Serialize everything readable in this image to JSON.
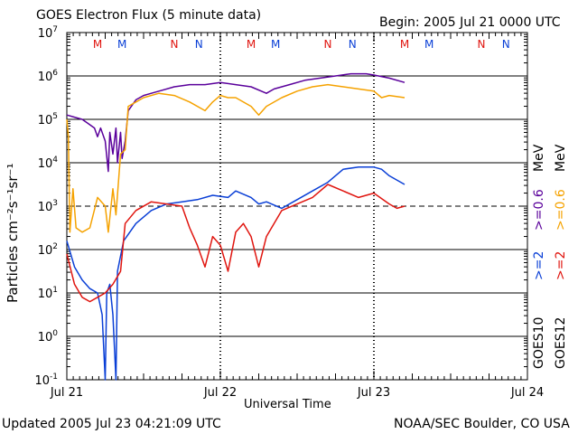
{
  "header": {
    "title": "GOES Electron Flux (5 minute data)",
    "begin": "Begin: 2005 Jul 21 0000 UTC"
  },
  "footer": {
    "updated": "Updated 2005 Jul 23 04:21:09 UTC",
    "credit": "NOAA/SEC Boulder, CO USA"
  },
  "colors": {
    "goes10_high": "#5a009b",
    "goes12_high": "#f5a200",
    "goes10_low": "#0a3fd6",
    "goes12_low": "#e0150f",
    "m_marker": "#e0150f",
    "n_marker": "#0a3fd6"
  },
  "chart_data": {
    "type": "line",
    "title": "GOES Electron Flux (5 minute data)",
    "xlabel": "Universal Time",
    "ylabel": "Particles cm⁻²s⁻¹sr⁻¹",
    "x_ticks": [
      "Jul 21",
      "Jul 22",
      "Jul 23",
      "Jul 24"
    ],
    "xlim": [
      0,
      3
    ],
    "ylim_log10": [
      -1,
      7
    ],
    "y_ticks": [
      {
        "base": "10",
        "exp": "7"
      },
      {
        "base": "10",
        "exp": "6"
      },
      {
        "base": "10",
        "exp": "5"
      },
      {
        "base": "10",
        "exp": "4"
      },
      {
        "base": "10",
        "exp": "3"
      },
      {
        "base": "10",
        "exp": "2"
      },
      {
        "base": "10",
        "exp": "1"
      },
      {
        "base": "10",
        "exp": "0"
      },
      {
        "base": "10",
        "exp": "-1"
      }
    ],
    "y_scale": "log",
    "threshold_log10": 3,
    "grid": "horizontal at each decade",
    "local_noon_markers": [
      {
        "label": "M",
        "x": 0.2,
        "color_key": "m_marker"
      },
      {
        "label": "M",
        "x": 0.36,
        "color_key": "n_marker"
      },
      {
        "label": "N",
        "x": 0.7,
        "color_key": "m_marker"
      },
      {
        "label": "N",
        "x": 0.86,
        "color_key": "n_marker"
      },
      {
        "label": "M",
        "x": 1.2,
        "color_key": "m_marker"
      },
      {
        "label": "M",
        "x": 1.36,
        "color_key": "n_marker"
      },
      {
        "label": "N",
        "x": 1.7,
        "color_key": "m_marker"
      },
      {
        "label": "N",
        "x": 1.86,
        "color_key": "n_marker"
      },
      {
        "label": "M",
        "x": 2.2,
        "color_key": "m_marker"
      },
      {
        "label": "M",
        "x": 2.36,
        "color_key": "n_marker"
      },
      {
        "label": "N",
        "x": 2.7,
        "color_key": "m_marker"
      },
      {
        "label": "N",
        "x": 2.86,
        "color_key": "n_marker"
      }
    ],
    "legend": {
      "goes10": {
        "sat": "GOES10",
        "low": ">=2",
        "high": ">=0.6",
        "unit": "MeV"
      },
      "goes12": {
        "sat": "GOES12",
        "low": ">=2",
        "high": ">=0.6",
        "unit": "MeV"
      }
    },
    "series": [
      {
        "name": "GOES10 >=0.6 MeV",
        "color_key": "goes10_high",
        "points": [
          [
            0,
            5.1
          ],
          [
            0.05,
            5.05
          ],
          [
            0.1,
            5
          ],
          [
            0.14,
            4.9
          ],
          [
            0.18,
            4.8
          ],
          [
            0.2,
            4.6
          ],
          [
            0.22,
            4.8
          ],
          [
            0.25,
            4.5
          ],
          [
            0.27,
            3.8
          ],
          [
            0.28,
            4.7
          ],
          [
            0.3,
            4.2
          ],
          [
            0.32,
            4.8
          ],
          [
            0.33,
            4.0
          ],
          [
            0.35,
            4.7
          ],
          [
            0.36,
            4.1
          ],
          [
            0.38,
            4.5
          ],
          [
            0.4,
            5.2
          ],
          [
            0.45,
            5.45
          ],
          [
            0.5,
            5.55
          ],
          [
            0.55,
            5.6
          ],
          [
            0.6,
            5.65
          ],
          [
            0.7,
            5.75
          ],
          [
            0.8,
            5.8
          ],
          [
            0.9,
            5.8
          ],
          [
            1.0,
            5.85
          ],
          [
            1.1,
            5.8
          ],
          [
            1.2,
            5.75
          ],
          [
            1.3,
            5.6
          ],
          [
            1.35,
            5.7
          ],
          [
            1.45,
            5.8
          ],
          [
            1.55,
            5.9
          ],
          [
            1.65,
            5.95
          ],
          [
            1.75,
            6.0
          ],
          [
            1.85,
            6.05
          ],
          [
            1.95,
            6.05
          ],
          [
            2.0,
            6.02
          ],
          [
            2.1,
            5.95
          ],
          [
            2.2,
            5.85
          ]
        ]
      },
      {
        "name": "GOES12 >=0.6 MeV",
        "color_key": "goes12_high",
        "points": [
          [
            0,
            5.0
          ],
          [
            0.01,
            4.6
          ],
          [
            0.02,
            2.4
          ],
          [
            0.04,
            3.4
          ],
          [
            0.06,
            2.5
          ],
          [
            0.1,
            2.4
          ],
          [
            0.15,
            2.5
          ],
          [
            0.2,
            3.2
          ],
          [
            0.25,
            3.0
          ],
          [
            0.27,
            2.4
          ],
          [
            0.3,
            3.4
          ],
          [
            0.32,
            2.8
          ],
          [
            0.35,
            4.2
          ],
          [
            0.38,
            4.3
          ],
          [
            0.4,
            5.3
          ],
          [
            0.45,
            5.4
          ],
          [
            0.5,
            5.5
          ],
          [
            0.6,
            5.6
          ],
          [
            0.7,
            5.55
          ],
          [
            0.8,
            5.4
          ],
          [
            0.9,
            5.2
          ],
          [
            0.95,
            5.4
          ],
          [
            1.0,
            5.55
          ],
          [
            1.05,
            5.5
          ],
          [
            1.1,
            5.5
          ],
          [
            1.2,
            5.3
          ],
          [
            1.25,
            5.1
          ],
          [
            1.3,
            5.3
          ],
          [
            1.4,
            5.5
          ],
          [
            1.5,
            5.65
          ],
          [
            1.6,
            5.75
          ],
          [
            1.7,
            5.8
          ],
          [
            1.8,
            5.75
          ],
          [
            1.9,
            5.7
          ],
          [
            2.0,
            5.65
          ],
          [
            2.05,
            5.5
          ],
          [
            2.1,
            5.55
          ],
          [
            2.2,
            5.5
          ]
        ]
      },
      {
        "name": "GOES10 >=2 MeV",
        "color_key": "goes10_low",
        "points": [
          [
            0,
            2.2
          ],
          [
            0.05,
            1.6
          ],
          [
            0.1,
            1.3
          ],
          [
            0.15,
            1.1
          ],
          [
            0.2,
            1.0
          ],
          [
            0.23,
            0.5
          ],
          [
            0.25,
            -1.0
          ],
          [
            0.26,
            1.0
          ],
          [
            0.28,
            1.2
          ],
          [
            0.3,
            0.5
          ],
          [
            0.32,
            -1.0
          ],
          [
            0.33,
            1.5
          ],
          [
            0.37,
            2.2
          ],
          [
            0.45,
            2.6
          ],
          [
            0.55,
            2.9
          ],
          [
            0.65,
            3.05
          ],
          [
            0.75,
            3.1
          ],
          [
            0.85,
            3.15
          ],
          [
            0.95,
            3.25
          ],
          [
            1.05,
            3.2
          ],
          [
            1.1,
            3.35
          ],
          [
            1.2,
            3.2
          ],
          [
            1.25,
            3.05
          ],
          [
            1.3,
            3.1
          ],
          [
            1.4,
            2.95
          ],
          [
            1.5,
            3.15
          ],
          [
            1.6,
            3.35
          ],
          [
            1.7,
            3.55
          ],
          [
            1.8,
            3.85
          ],
          [
            1.9,
            3.9
          ],
          [
            2.0,
            3.9
          ],
          [
            2.05,
            3.85
          ],
          [
            2.1,
            3.7
          ],
          [
            2.2,
            3.5
          ]
        ]
      },
      {
        "name": "GOES12 >=2 MeV",
        "color_key": "goes12_low",
        "points": [
          [
            0,
            1.9
          ],
          [
            0.05,
            1.2
          ],
          [
            0.1,
            0.9
          ],
          [
            0.15,
            0.8
          ],
          [
            0.2,
            0.9
          ],
          [
            0.25,
            1.0
          ],
          [
            0.3,
            1.2
          ],
          [
            0.35,
            1.5
          ],
          [
            0.38,
            2.6
          ],
          [
            0.45,
            2.9
          ],
          [
            0.55,
            3.1
          ],
          [
            0.65,
            3.05
          ],
          [
            0.75,
            3.0
          ],
          [
            0.8,
            2.5
          ],
          [
            0.85,
            2.1
          ],
          [
            0.9,
            1.6
          ],
          [
            0.95,
            2.3
          ],
          [
            1.0,
            2.1
          ],
          [
            1.05,
            1.5
          ],
          [
            1.1,
            2.4
          ],
          [
            1.15,
            2.6
          ],
          [
            1.2,
            2.3
          ],
          [
            1.25,
            1.6
          ],
          [
            1.3,
            2.3
          ],
          [
            1.4,
            2.9
          ],
          [
            1.5,
            3.05
          ],
          [
            1.6,
            3.2
          ],
          [
            1.7,
            3.5
          ],
          [
            1.8,
            3.35
          ],
          [
            1.9,
            3.2
          ],
          [
            2.0,
            3.3
          ],
          [
            2.1,
            3.05
          ],
          [
            2.15,
            2.95
          ],
          [
            2.2,
            3.0
          ]
        ]
      }
    ]
  }
}
